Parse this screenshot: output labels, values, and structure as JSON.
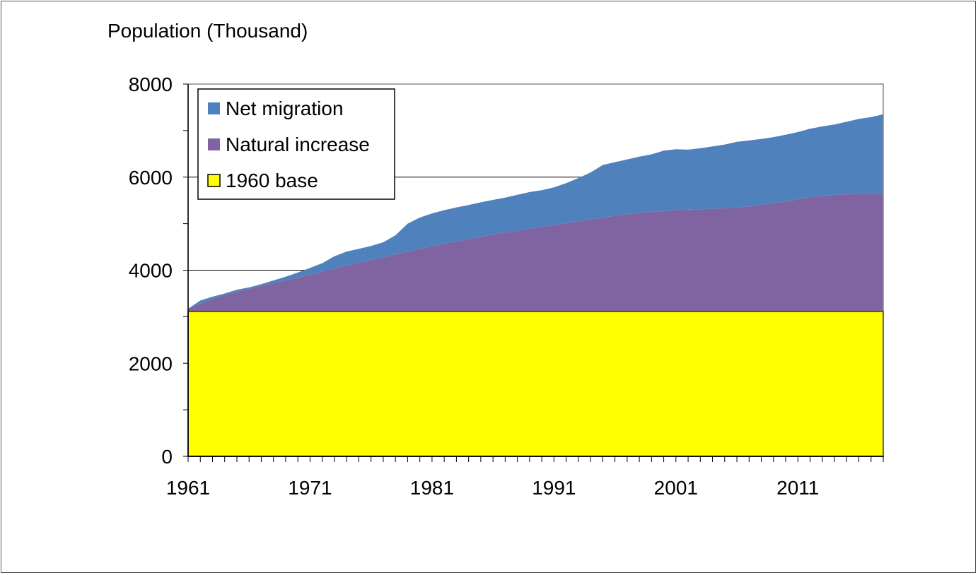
{
  "chart_data": {
    "type": "area",
    "stacked": true,
    "ylabel": "Population (Thousand)",
    "ylim": [
      0,
      8000
    ],
    "yticks": [
      0,
      2000,
      4000,
      6000,
      8000
    ],
    "xlim": [
      1961,
      2018
    ],
    "xtick_labels": [
      1961,
      1971,
      1981,
      1991,
      2001,
      2011
    ],
    "grid": "major horizontal lines",
    "legend_position": "top-left",
    "x": [
      1961,
      1962,
      1963,
      1964,
      1965,
      1966,
      1967,
      1968,
      1969,
      1970,
      1971,
      1972,
      1973,
      1974,
      1975,
      1976,
      1977,
      1978,
      1979,
      1980,
      1981,
      1982,
      1983,
      1984,
      1985,
      1986,
      1987,
      1988,
      1989,
      1990,
      1991,
      1992,
      1993,
      1994,
      1995,
      1996,
      1997,
      1998,
      1999,
      2000,
      2001,
      2002,
      2003,
      2004,
      2005,
      2006,
      2007,
      2008,
      2009,
      2010,
      2011,
      2012,
      2013,
      2014,
      2015,
      2016,
      2017,
      2018
    ],
    "totals": [
      3170,
      3350,
      3430,
      3500,
      3580,
      3630,
      3700,
      3780,
      3860,
      3950,
      4050,
      4150,
      4300,
      4400,
      4460,
      4520,
      4600,
      4750,
      5000,
      5130,
      5220,
      5290,
      5350,
      5400,
      5460,
      5510,
      5560,
      5620,
      5680,
      5720,
      5780,
      5870,
      5980,
      6100,
      6260,
      6320,
      6380,
      6440,
      6490,
      6570,
      6600,
      6590,
      6620,
      6660,
      6700,
      6760,
      6790,
      6820,
      6860,
      6910,
      6970,
      7040,
      7090,
      7130,
      7190,
      7250,
      7290,
      7350
    ],
    "series": [
      {
        "name": "1960 base",
        "color": "#ffff00",
        "values": [
          3120,
          3120,
          3120,
          3120,
          3120,
          3120,
          3120,
          3120,
          3120,
          3120,
          3120,
          3120,
          3120,
          3120,
          3120,
          3120,
          3120,
          3120,
          3120,
          3120,
          3120,
          3120,
          3120,
          3120,
          3120,
          3120,
          3120,
          3120,
          3120,
          3120,
          3120,
          3120,
          3120,
          3120,
          3120,
          3120,
          3120,
          3120,
          3120,
          3120,
          3120,
          3120,
          3120,
          3120,
          3120,
          3120,
          3120,
          3120,
          3120,
          3120,
          3120,
          3120,
          3120,
          3120,
          3120,
          3120,
          3120,
          3120
        ]
      },
      {
        "name": "Natural increase",
        "color": "#8064a2",
        "values": [
          50,
          160,
          260,
          350,
          420,
          480,
          540,
          600,
          660,
          720,
          780,
          850,
          910,
          980,
          1040,
          1100,
          1160,
          1220,
          1280,
          1340,
          1390,
          1450,
          1500,
          1550,
          1600,
          1650,
          1690,
          1730,
          1770,
          1810,
          1850,
          1890,
          1930,
          1970,
          2010,
          2050,
          2080,
          2110,
          2130,
          2150,
          2170,
          2180,
          2190,
          2200,
          2210,
          2230,
          2250,
          2280,
          2320,
          2360,
          2400,
          2450,
          2480,
          2500,
          2510,
          2520,
          2530,
          2540
        ]
      },
      {
        "name": "Net migration",
        "color": "#4f81bd",
        "values": [
          0,
          70,
          50,
          30,
          40,
          30,
          40,
          60,
          80,
          110,
          150,
          180,
          270,
          300,
          300,
          300,
          320,
          410,
          600,
          670,
          710,
          720,
          730,
          730,
          740,
          740,
          750,
          770,
          790,
          790,
          810,
          860,
          930,
          1010,
          1130,
          1150,
          1180,
          1210,
          1240,
          1300,
          1310,
          1290,
          1310,
          1340,
          1370,
          1410,
          1420,
          1420,
          1420,
          1430,
          1450,
          1470,
          1490,
          1510,
          1560,
          1610,
          1640,
          1690
        ]
      }
    ]
  }
}
